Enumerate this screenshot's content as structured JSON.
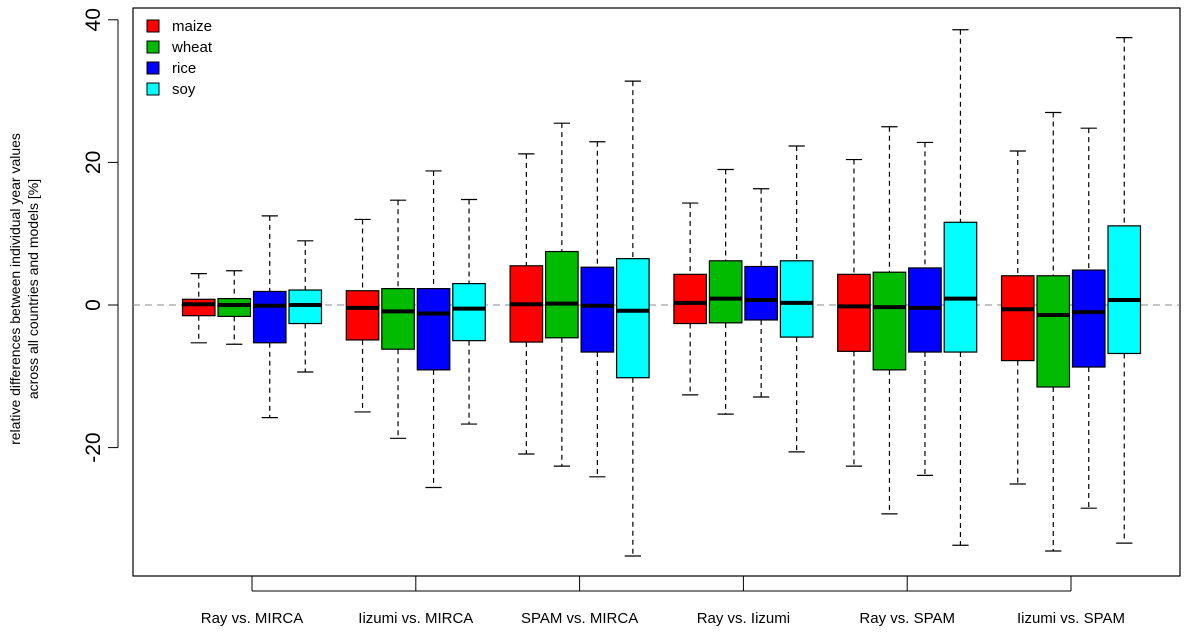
{
  "chart_data": {
    "type": "box",
    "ylabel_lines": [
      "relative differences between individual year values",
      "across all countries and models [%]"
    ],
    "categories": [
      "Ray vs. MIRCA",
      "Iizumi vs. MIRCA",
      "SPAM vs. MIRCA",
      "Ray vs. Iizumi",
      "Ray vs. SPAM",
      "Iizumi vs. SPAM"
    ],
    "yticks": [
      -20,
      0,
      20,
      40
    ],
    "ytick_labels": [
      "-20",
      "0",
      "20",
      "40"
    ],
    "ylim": [
      -38.5,
      40.5
    ],
    "reference_line": 0,
    "legend_position": "top-left",
    "series": [
      {
        "name": "maize",
        "color": "#ff0000",
        "boxes": [
          {
            "min": -5.3,
            "q1": -1.5,
            "median": 0.1,
            "q3": 0.8,
            "max": 4.4
          },
          {
            "min": -15.0,
            "q1": -4.9,
            "median": -0.4,
            "q3": 2.0,
            "max": 12.0
          },
          {
            "min": -20.9,
            "q1": -5.2,
            "median": 0.1,
            "q3": 5.5,
            "max": 21.2
          },
          {
            "min": -12.6,
            "q1": -2.6,
            "median": 0.3,
            "q3": 4.3,
            "max": 14.3
          },
          {
            "min": -22.6,
            "q1": -6.5,
            "median": -0.2,
            "q3": 4.3,
            "max": 20.4
          },
          {
            "min": -25.1,
            "q1": -7.8,
            "median": -0.6,
            "q3": 4.1,
            "max": 21.6
          }
        ]
      },
      {
        "name": "wheat",
        "color": "#00bb00",
        "boxes": [
          {
            "min": -5.5,
            "q1": -1.6,
            "median": 0.0,
            "q3": 0.9,
            "max": 4.8
          },
          {
            "min": -18.7,
            "q1": -6.2,
            "median": -0.9,
            "q3": 2.3,
            "max": 14.7
          },
          {
            "min": -22.6,
            "q1": -4.6,
            "median": 0.2,
            "q3": 7.5,
            "max": 25.5
          },
          {
            "min": -15.3,
            "q1": -2.5,
            "median": 0.9,
            "q3": 6.2,
            "max": 19.0
          },
          {
            "min": -29.3,
            "q1": -9.1,
            "median": -0.3,
            "q3": 4.6,
            "max": 25.0
          },
          {
            "min": -34.5,
            "q1": -11.5,
            "median": -1.4,
            "q3": 4.1,
            "max": 27.0
          }
        ]
      },
      {
        "name": "rice",
        "color": "#0000ff",
        "boxes": [
          {
            "min": -15.8,
            "q1": -5.3,
            "median": -0.1,
            "q3": 1.9,
            "max": 12.5
          },
          {
            "min": -25.6,
            "q1": -9.1,
            "median": -1.2,
            "q3": 2.3,
            "max": 18.8
          },
          {
            "min": -24.1,
            "q1": -6.6,
            "median": -0.1,
            "q3": 5.3,
            "max": 22.9
          },
          {
            "min": -12.9,
            "q1": -2.1,
            "median": 0.7,
            "q3": 5.4,
            "max": 16.3
          },
          {
            "min": -23.9,
            "q1": -6.6,
            "median": -0.4,
            "q3": 5.2,
            "max": 22.8
          },
          {
            "min": -28.5,
            "q1": -8.7,
            "median": -1.0,
            "q3": 4.9,
            "max": 24.8
          }
        ]
      },
      {
        "name": "soy",
        "color": "#00ffff",
        "boxes": [
          {
            "min": -9.4,
            "q1": -2.6,
            "median": 0.0,
            "q3": 2.1,
            "max": 9.0
          },
          {
            "min": -16.7,
            "q1": -5.0,
            "median": -0.5,
            "q3": 3.0,
            "max": 14.8
          },
          {
            "min": -35.2,
            "q1": -10.2,
            "median": -0.8,
            "q3": 6.5,
            "max": 31.4
          },
          {
            "min": -20.6,
            "q1": -4.5,
            "median": 0.3,
            "q3": 6.2,
            "max": 22.3
          },
          {
            "min": -33.7,
            "q1": -6.6,
            "median": 0.9,
            "q3": 11.6,
            "max": 38.6
          },
          {
            "min": -33.4,
            "q1": -6.8,
            "median": 0.7,
            "q3": 11.1,
            "max": 37.5
          }
        ]
      }
    ]
  }
}
